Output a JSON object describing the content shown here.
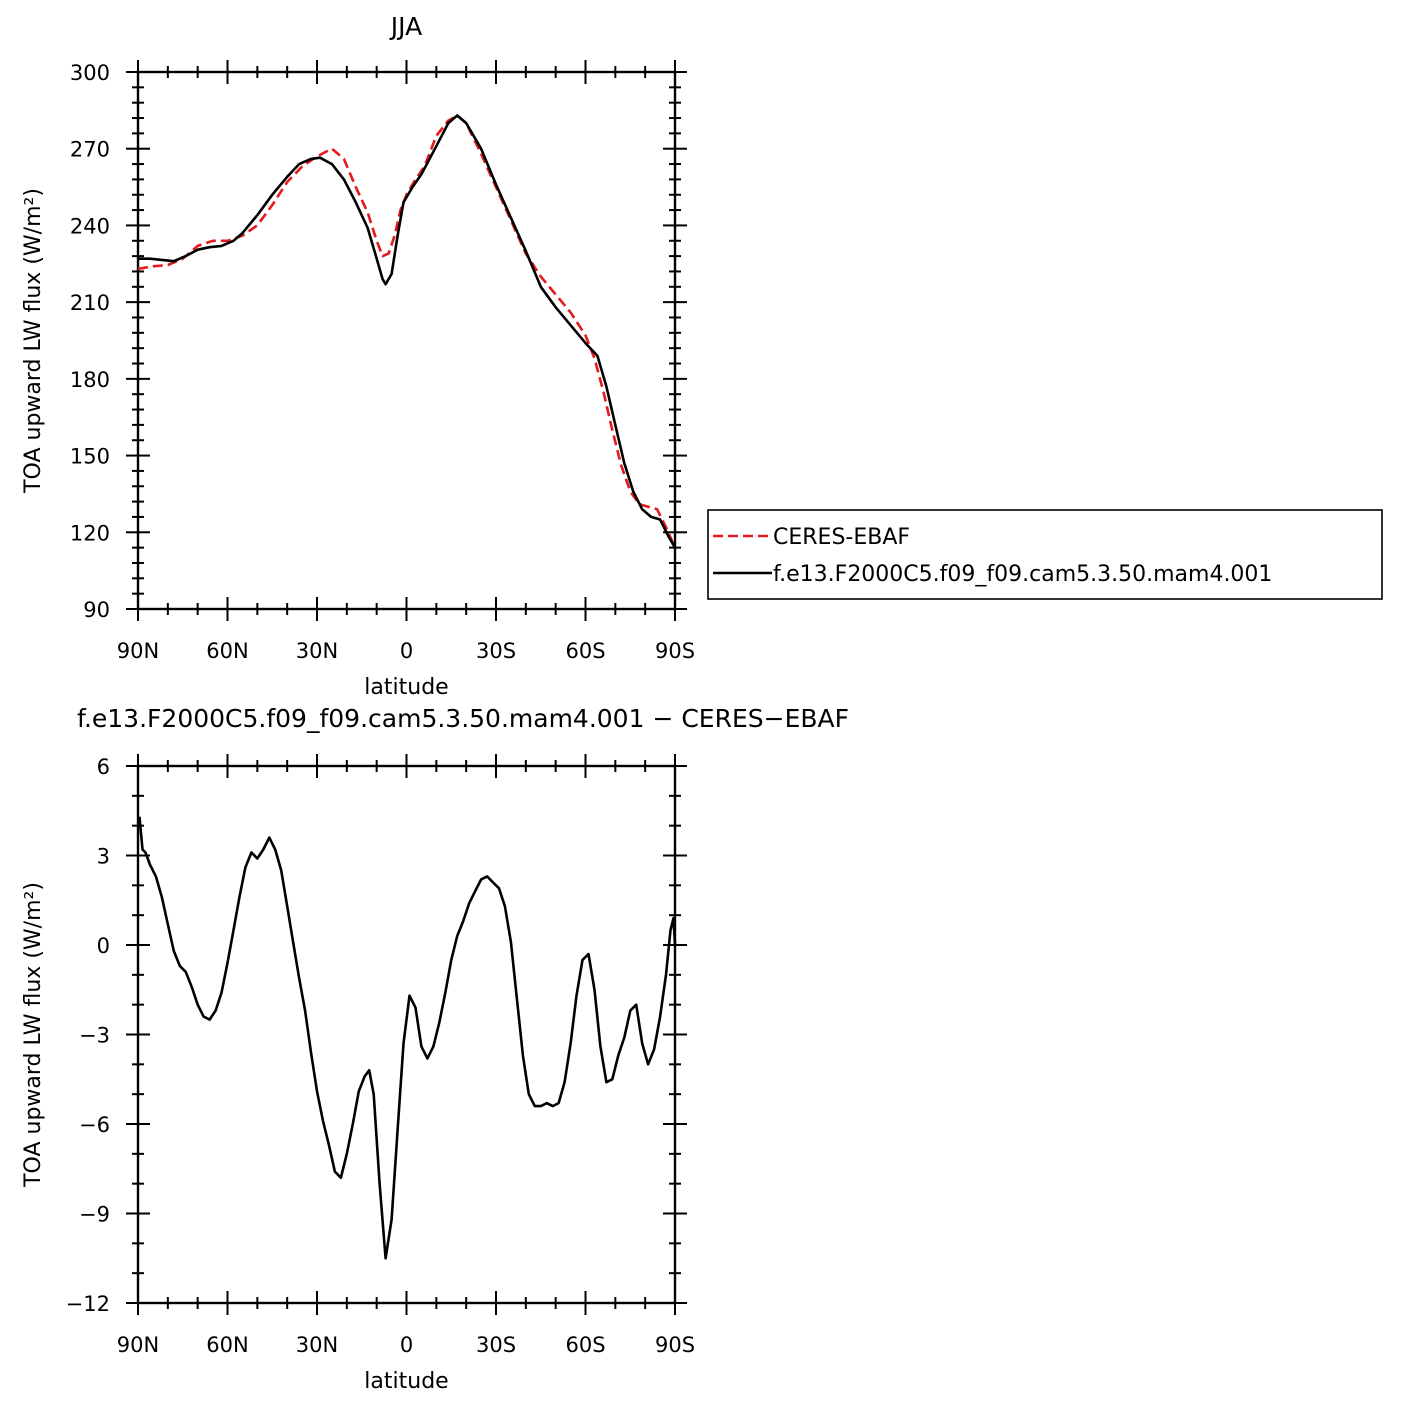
{
  "chart_data": [
    {
      "type": "line",
      "title": "JJA",
      "xlabel": "latitude",
      "ylabel": "TOA upward LW flux (W/m²)",
      "xlim": [
        90,
        -90
      ],
      "ylim": [
        90,
        300
      ],
      "x_ticks": [
        90,
        60,
        30,
        0,
        -30,
        -60,
        -90
      ],
      "x_tick_labels": [
        "90N",
        "60N",
        "30N",
        "0",
        "30S",
        "60S",
        "90S"
      ],
      "y_ticks": [
        90,
        120,
        150,
        180,
        210,
        240,
        270,
        300
      ],
      "y_tick_labels": [
        "90",
        "120",
        "150",
        "180",
        "210",
        "240",
        "270",
        "300"
      ],
      "legend": {
        "placement": "outside-right"
      },
      "series": [
        {
          "name": "CERES-EBAF",
          "color": "#e41a1c",
          "dash": "dashed",
          "points": [
            [
              90,
              223
            ],
            [
              85,
              224
            ],
            [
              80,
              224.5
            ],
            [
              75,
              227
            ],
            [
              70,
              232
            ],
            [
              65,
              234
            ],
            [
              60,
              234
            ],
            [
              55,
              236
            ],
            [
              50,
              240
            ],
            [
              45,
              248
            ],
            [
              40,
              257
            ],
            [
              35,
              263
            ],
            [
              30,
              267
            ],
            [
              25,
              270
            ],
            [
              21,
              266
            ],
            [
              17,
              255
            ],
            [
              13,
              245
            ],
            [
              10,
              234
            ],
            [
              8,
              228
            ],
            [
              6,
              229
            ],
            [
              4,
              236
            ],
            [
              2,
              246
            ],
            [
              0,
              252
            ],
            [
              -3,
              258
            ],
            [
              -6,
              263
            ],
            [
              -10,
              275
            ],
            [
              -14,
              281
            ],
            [
              -17,
              283
            ],
            [
              -20,
              280
            ],
            [
              -25,
              268
            ],
            [
              -30,
              255
            ],
            [
              -35,
              242
            ],
            [
              -40,
              229
            ],
            [
              -45,
              220
            ],
            [
              -50,
              213
            ],
            [
              -55,
              206
            ],
            [
              -60,
              197
            ],
            [
              -63,
              188
            ],
            [
              -66,
              175
            ],
            [
              -69,
              160
            ],
            [
              -72,
              146
            ],
            [
              -75,
              136
            ],
            [
              -78,
              131
            ],
            [
              -81,
              130
            ],
            [
              -84,
              129
            ],
            [
              -87,
              122
            ],
            [
              -90,
              114
            ]
          ]
        },
        {
          "name": "f.e13.F2000C5.f09_f09.cam5.3.50.mam4.001",
          "color": "#000000",
          "dash": "solid",
          "points": [
            [
              90,
              227
            ],
            [
              86,
              227
            ],
            [
              82,
              226.5
            ],
            [
              78,
              226
            ],
            [
              74,
              228
            ],
            [
              70,
              230.5
            ],
            [
              66,
              231.5
            ],
            [
              62,
              232
            ],
            [
              58,
              234
            ],
            [
              55,
              237
            ],
            [
              50,
              244
            ],
            [
              45,
              252
            ],
            [
              40,
              259
            ],
            [
              36,
              264
            ],
            [
              32,
              266
            ],
            [
              29,
              266.5
            ],
            [
              25,
              264
            ],
            [
              21,
              258
            ],
            [
              17,
              249
            ],
            [
              13,
              239
            ],
            [
              10,
              227
            ],
            [
              8,
              219
            ],
            [
              7,
              217
            ],
            [
              5,
              221
            ],
            [
              3,
              236
            ],
            [
              1,
              249
            ],
            [
              -2,
              255
            ],
            [
              -5,
              260
            ],
            [
              -10,
              271
            ],
            [
              -14,
              280
            ],
            [
              -17,
              283
            ],
            [
              -20,
              280
            ],
            [
              -25,
              270
            ],
            [
              -30,
              256
            ],
            [
              -35,
              243
            ],
            [
              -40,
              230
            ],
            [
              -45,
              216
            ],
            [
              -50,
              208
            ],
            [
              -55,
              201
            ],
            [
              -60,
              194
            ],
            [
              -64,
              189
            ],
            [
              -67,
              177
            ],
            [
              -70,
              162
            ],
            [
              -73,
              147
            ],
            [
              -76,
              136
            ],
            [
              -79,
              129
            ],
            [
              -82,
              126
            ],
            [
              -85,
              125
            ],
            [
              -88,
              118
            ],
            [
              -90,
              114
            ]
          ]
        }
      ]
    },
    {
      "type": "line",
      "title": "f.e13.F2000C5.f09_f09.cam5.3.50.mam4.001 − CERES−EBAF",
      "xlabel": "latitude",
      "ylabel": "TOA upward LW flux (W/m²)",
      "xlim": [
        90,
        -90
      ],
      "ylim": [
        -12,
        6
      ],
      "x_ticks": [
        90,
        60,
        30,
        0,
        -30,
        -60,
        -90
      ],
      "x_tick_labels": [
        "90N",
        "60N",
        "30N",
        "0",
        "30S",
        "60S",
        "90S"
      ],
      "y_ticks": [
        -12,
        -9,
        -6,
        -3,
        0,
        3,
        6
      ],
      "y_tick_labels": [
        "−12",
        "−9",
        "−6",
        "−3",
        "0",
        "3",
        "6"
      ],
      "series": [
        {
          "color": "#000000",
          "dash": "solid",
          "points": [
            [
              89.5,
              4.3
            ],
            [
              88.5,
              3.2
            ],
            [
              87.5,
              3.1
            ],
            [
              86,
              2.7
            ],
            [
              84,
              2.3
            ],
            [
              82,
              1.6
            ],
            [
              80,
              0.7
            ],
            [
              78,
              -0.2
            ],
            [
              76,
              -0.7
            ],
            [
              74,
              -0.9
            ],
            [
              72,
              -1.4
            ],
            [
              70,
              -2.0
            ],
            [
              68,
              -2.4
            ],
            [
              66,
              -2.5
            ],
            [
              64,
              -2.2
            ],
            [
              62,
              -1.6
            ],
            [
              60,
              -0.6
            ],
            [
              58,
              0.5
            ],
            [
              56,
              1.6
            ],
            [
              54,
              2.6
            ],
            [
              52,
              3.1
            ],
            [
              50,
              2.9
            ],
            [
              48,
              3.2
            ],
            [
              46,
              3.6
            ],
            [
              44,
              3.2
            ],
            [
              42,
              2.5
            ],
            [
              40,
              1.3
            ],
            [
              38,
              0.1
            ],
            [
              36,
              -1.1
            ],
            [
              34,
              -2.2
            ],
            [
              32,
              -3.6
            ],
            [
              30,
              -4.9
            ],
            [
              28,
              -5.9
            ],
            [
              26,
              -6.7
            ],
            [
              24,
              -7.6
            ],
            [
              22,
              -7.8
            ],
            [
              20,
              -7.0
            ],
            [
              18,
              -6.0
            ],
            [
              16,
              -4.9
            ],
            [
              14,
              -4.4
            ],
            [
              12.5,
              -4.2
            ],
            [
              11,
              -5.0
            ],
            [
              9,
              -8.0
            ],
            [
              7,
              -10.5
            ],
            [
              5,
              -9.2
            ],
            [
              3,
              -6.2
            ],
            [
              1,
              -3.3
            ],
            [
              -1,
              -1.7
            ],
            [
              -3,
              -2.1
            ],
            [
              -5,
              -3.4
            ],
            [
              -7,
              -3.8
            ],
            [
              -9,
              -3.4
            ],
            [
              -11,
              -2.6
            ],
            [
              -13,
              -1.6
            ],
            [
              -15,
              -0.5
            ],
            [
              -17,
              0.3
            ],
            [
              -19,
              0.8
            ],
            [
              -21,
              1.4
            ],
            [
              -23,
              1.8
            ],
            [
              -25,
              2.2
            ],
            [
              -27,
              2.3
            ],
            [
              -29,
              2.1
            ],
            [
              -31,
              1.9
            ],
            [
              -33,
              1.3
            ],
            [
              -35,
              0.1
            ],
            [
              -37,
              -1.8
            ],
            [
              -39,
              -3.7
            ],
            [
              -41,
              -5.0
            ],
            [
              -43,
              -5.4
            ],
            [
              -45,
              -5.4
            ],
            [
              -47,
              -5.3
            ],
            [
              -49,
              -5.4
            ],
            [
              -51,
              -5.3
            ],
            [
              -53,
              -4.6
            ],
            [
              -55,
              -3.3
            ],
            [
              -57,
              -1.7
            ],
            [
              -59,
              -0.5
            ],
            [
              -61,
              -0.3
            ],
            [
              -63,
              -1.5
            ],
            [
              -65,
              -3.4
            ],
            [
              -67,
              -4.6
            ],
            [
              -69,
              -4.5
            ],
            [
              -71,
              -3.7
            ],
            [
              -73,
              -3.1
            ],
            [
              -75,
              -2.2
            ],
            [
              -77,
              -2.0
            ],
            [
              -79,
              -3.3
            ],
            [
              -81,
              -4.0
            ],
            [
              -83,
              -3.5
            ],
            [
              -85,
              -2.4
            ],
            [
              -87,
              -1.0
            ],
            [
              -88.5,
              0.5
            ],
            [
              -89.5,
              0.9
            ],
            [
              -90,
              0.0
            ]
          ]
        }
      ]
    }
  ]
}
